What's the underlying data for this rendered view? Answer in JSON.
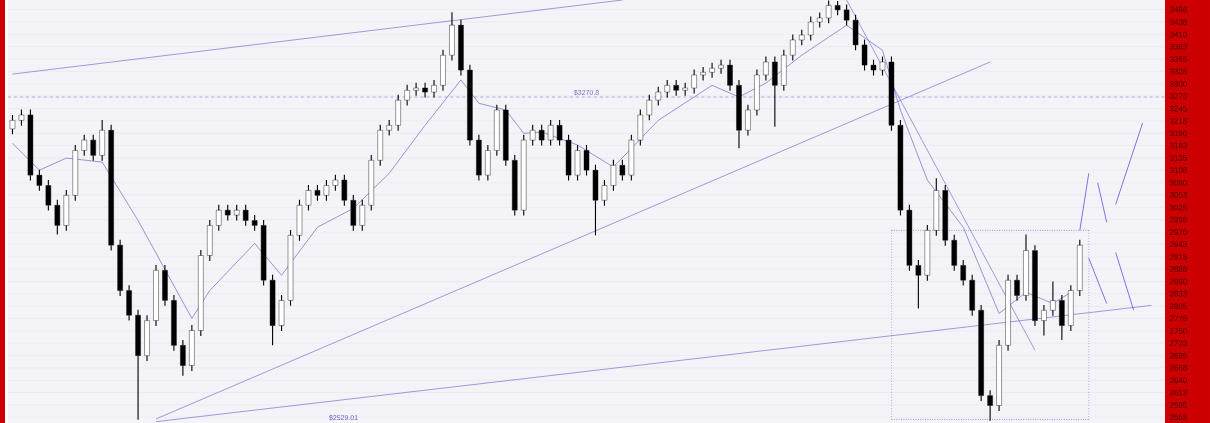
{
  "chart_data": {
    "type": "candlestick",
    "categories": [
      null,
      null,
      null,
      null,
      null,
      null,
      null,
      null,
      null,
      null,
      null,
      null,
      null,
      null,
      null,
      null,
      null,
      null,
      null,
      null,
      null,
      null,
      null,
      null,
      null,
      null,
      null,
      null,
      null,
      null,
      null,
      null,
      null,
      null,
      null,
      null,
      null,
      null,
      null,
      null,
      null,
      null,
      null,
      null,
      null,
      null,
      null,
      null,
      null,
      null,
      null,
      null,
      null,
      null,
      null,
      null,
      null,
      null,
      null,
      null,
      null,
      null,
      null,
      null,
      null,
      null,
      null,
      null,
      null,
      null,
      null,
      null,
      null,
      null,
      null,
      null,
      null,
      null,
      null,
      null,
      null,
      null,
      null,
      null,
      null,
      null,
      null,
      null,
      null,
      null,
      null,
      null,
      null,
      null,
      null,
      null,
      null,
      null,
      null,
      null,
      null,
      null,
      null,
      null,
      null,
      null,
      null,
      null,
      null,
      null,
      null,
      null,
      null,
      null,
      null,
      null,
      null,
      null,
      null,
      null,
      null,
      null,
      null,
      null,
      null,
      null,
      null,
      null,
      null
    ],
    "ohlc": [
      [
        3200,
        3231,
        3188,
        3219
      ],
      [
        3219,
        3243,
        3207,
        3231
      ],
      [
        3231,
        3243,
        3085,
        3097
      ],
      [
        3097,
        3109,
        3062,
        3074
      ],
      [
        3074,
        3086,
        3018,
        3030
      ],
      [
        3030,
        3042,
        2965,
        2985
      ],
      [
        2985,
        3064,
        2973,
        3052
      ],
      [
        3052,
        3164,
        3040,
        3152
      ],
      [
        3152,
        3187,
        3140,
        3175
      ],
      [
        3175,
        3187,
        3129,
        3141
      ],
      [
        3141,
        3220,
        3129,
        3197
      ],
      [
        3197,
        3209,
        2929,
        2941
      ],
      [
        2941,
        2953,
        2828,
        2840
      ],
      [
        2840,
        2852,
        2773,
        2785
      ],
      [
        2785,
        2797,
        2552,
        2695
      ],
      [
        2695,
        2785,
        2683,
        2773
      ],
      [
        2773,
        2897,
        2761,
        2885
      ],
      [
        2885,
        2897,
        2806,
        2818
      ],
      [
        2818,
        2830,
        2706,
        2718
      ],
      [
        2718,
        2730,
        2650,
        2673
      ],
      [
        2673,
        2763,
        2661,
        2751
      ],
      [
        2751,
        2930,
        2739,
        2918
      ],
      [
        2918,
        2997,
        2906,
        2985
      ],
      [
        2985,
        3031,
        2973,
        3019
      ],
      [
        3019,
        3031,
        2996,
        3008
      ],
      [
        3008,
        3031,
        2996,
        3019
      ],
      [
        3019,
        3031,
        2984,
        2996
      ],
      [
        2996,
        3008,
        2973,
        2985
      ],
      [
        2985,
        2997,
        2851,
        2863
      ],
      [
        2863,
        2875,
        2718,
        2762
      ],
      [
        2762,
        2830,
        2750,
        2818
      ],
      [
        2818,
        2975,
        2806,
        2963
      ],
      [
        2963,
        3042,
        2951,
        3030
      ],
      [
        3030,
        3075,
        3018,
        3063
      ],
      [
        3063,
        3075,
        3040,
        3052
      ],
      [
        3052,
        3086,
        3040,
        3074
      ],
      [
        3074,
        3098,
        3062,
        3086
      ],
      [
        3086,
        3098,
        3029,
        3041
      ],
      [
        3041,
        3053,
        2973,
        2985
      ],
      [
        2985,
        3042,
        2973,
        3030
      ],
      [
        3030,
        3142,
        3018,
        3130
      ],
      [
        3130,
        3209,
        3118,
        3197
      ],
      [
        3197,
        3220,
        3185,
        3208
      ],
      [
        3208,
        3276,
        3196,
        3264
      ],
      [
        3264,
        3298,
        3252,
        3286
      ],
      [
        3286,
        3303,
        3274,
        3291
      ],
      [
        3291,
        3303,
        3270,
        3282
      ],
      [
        3282,
        3309,
        3270,
        3297
      ],
      [
        3297,
        3376,
        3285,
        3364
      ],
      [
        3364,
        3460,
        3352,
        3431
      ],
      [
        3431,
        3443,
        3319,
        3331
      ],
      [
        3331,
        3343,
        3163,
        3175
      ],
      [
        3175,
        3187,
        3085,
        3097
      ],
      [
        3097,
        3164,
        3085,
        3152
      ],
      [
        3152,
        3254,
        3140,
        3242
      ],
      [
        3242,
        3254,
        3118,
        3130
      ],
      [
        3130,
        3142,
        3007,
        3019
      ],
      [
        3019,
        3187,
        3007,
        3175
      ],
      [
        3175,
        3209,
        3163,
        3197
      ],
      [
        3197,
        3209,
        3163,
        3175
      ],
      [
        3175,
        3220,
        3163,
        3208
      ],
      [
        3208,
        3220,
        3163,
        3175
      ],
      [
        3175,
        3187,
        3085,
        3097
      ],
      [
        3097,
        3164,
        3085,
        3152
      ],
      [
        3152,
        3164,
        3096,
        3108
      ],
      [
        3108,
        3120,
        2963,
        3041
      ],
      [
        3041,
        3086,
        3029,
        3074
      ],
      [
        3074,
        3131,
        3062,
        3119
      ],
      [
        3119,
        3131,
        3085,
        3097
      ],
      [
        3097,
        3187,
        3085,
        3175
      ],
      [
        3175,
        3243,
        3163,
        3231
      ],
      [
        3231,
        3276,
        3219,
        3264
      ],
      [
        3264,
        3294,
        3252,
        3282
      ],
      [
        3282,
        3309,
        3270,
        3297
      ],
      [
        3297,
        3309,
        3274,
        3286
      ],
      [
        3286,
        3303,
        3274,
        3291
      ],
      [
        3291,
        3332,
        3279,
        3320
      ],
      [
        3320,
        3338,
        3308,
        3326
      ],
      [
        3326,
        3347,
        3314,
        3335
      ],
      [
        3335,
        3354,
        3323,
        3342
      ],
      [
        3342,
        3354,
        3285,
        3297
      ],
      [
        3297,
        3309,
        3157,
        3197
      ],
      [
        3197,
        3254,
        3185,
        3242
      ],
      [
        3242,
        3332,
        3230,
        3320
      ],
      [
        3320,
        3361,
        3308,
        3349
      ],
      [
        3349,
        3361,
        3205,
        3297
      ],
      [
        3297,
        3376,
        3285,
        3364
      ],
      [
        3364,
        3410,
        3352,
        3398
      ],
      [
        3398,
        3421,
        3386,
        3409
      ],
      [
        3409,
        3450,
        3397,
        3438
      ],
      [
        3438,
        3459,
        3426,
        3447
      ],
      [
        3447,
        3486,
        3435,
        3475
      ],
      [
        3475,
        3485,
        3453,
        3465
      ],
      [
        3465,
        3477,
        3430,
        3442
      ],
      [
        3442,
        3454,
        3375,
        3387
      ],
      [
        3387,
        3399,
        3330,
        3342
      ],
      [
        3342,
        3354,
        3319,
        3331
      ],
      [
        3331,
        3361,
        3319,
        3349
      ],
      [
        3349,
        3361,
        3196,
        3208
      ],
      [
        3208,
        3220,
        3007,
        3019
      ],
      [
        3019,
        3031,
        2884,
        2896
      ],
      [
        2896,
        2908,
        2800,
        2874
      ],
      [
        2874,
        2986,
        2862,
        2974
      ],
      [
        2974,
        3090,
        2962,
        3063
      ],
      [
        3063,
        3075,
        2940,
        2952
      ],
      [
        2952,
        2964,
        2884,
        2896
      ],
      [
        2896,
        2908,
        2851,
        2863
      ],
      [
        2863,
        2875,
        2784,
        2796
      ],
      [
        2796,
        2808,
        2594,
        2606
      ],
      [
        2606,
        2618,
        2550,
        2584
      ],
      [
        2584,
        2730,
        2572,
        2718
      ],
      [
        2718,
        2875,
        2706,
        2863
      ],
      [
        2863,
        2875,
        2817,
        2829
      ],
      [
        2829,
        2965,
        2817,
        2929
      ],
      [
        2929,
        2941,
        2761,
        2773
      ],
      [
        2773,
        2808,
        2740,
        2796
      ],
      [
        2796,
        2860,
        2784,
        2818
      ],
      [
        2818,
        2830,
        2730,
        2762
      ],
      [
        2762,
        2852,
        2750,
        2840
      ],
      [
        2840,
        2953,
        2828,
        2941
      ],
      null,
      null,
      null,
      null,
      null,
      null,
      null,
      null,
      null
    ],
    "series": [
      {
        "type": "line",
        "color": "#6a6acc",
        "values": [
          3168,
          null,
          null,
          3108,
          null,
          null,
          3135,
          null,
          null,
          null,
          3126,
          null,
          null,
          null,
          2996,
          null,
          null,
          null,
          null,
          null,
          2778,
          null,
          2840,
          null,
          null,
          null,
          null,
          2945,
          null,
          null,
          2874,
          null,
          null,
          null,
          2981,
          null,
          null,
          null,
          3023,
          null,
          null,
          null,
          3101,
          null,
          null,
          null,
          3208,
          null,
          null,
          null,
          3309,
          null,
          3257,
          null,
          null,
          3242,
          null,
          3190,
          null,
          3193,
          null,
          null,
          null,
          3164,
          null,
          null,
          null,
          3115,
          null,
          null,
          null,
          null,
          3219,
          null,
          null,
          null,
          null,
          null,
          3297,
          null,
          null,
          3271,
          null,
          null,
          3302,
          null,
          null,
          null,
          3364,
          null,
          null,
          null,
          null,
          3431,
          null,
          null,
          null,
          3375,
          null,
          3242,
          null,
          null,
          3086,
          null,
          null,
          null,
          2981,
          null,
          null,
          null,
          2789,
          null,
          null,
          2836,
          null,
          null,
          2811,
          null,
          2836,
          null,
          null,
          null,
          null,
          null,
          null,
          null,
          null,
          null,
          null
        ]
      },
      {
        "type": "line",
        "color": "#7474d4",
        "values": [
          3322,
          null,
          null,
          null,
          null,
          null,
          null,
          null,
          null,
          null,
          null,
          null,
          null,
          null,
          null,
          null,
          null,
          null,
          null,
          null,
          null,
          null,
          null,
          null,
          null,
          null,
          null,
          null,
          null,
          null,
          null,
          null,
          null,
          null,
          null,
          null,
          null,
          null,
          null,
          null,
          null,
          null,
          null,
          null,
          null,
          null,
          null,
          null,
          null,
          null,
          null,
          null,
          null,
          null,
          null,
          null,
          null,
          null,
          null,
          null,
          null,
          null,
          null,
          null,
          null,
          null,
          null,
          null,
          3487,
          null,
          null,
          null,
          null,
          null,
          null,
          null,
          null,
          null,
          null,
          null,
          null,
          null,
          null,
          null,
          null,
          null,
          null,
          null,
          null,
          null,
          null,
          null,
          null,
          null,
          null,
          null,
          null,
          null,
          null,
          null,
          null,
          null,
          null,
          null,
          null,
          null,
          null,
          null,
          null,
          null,
          null,
          null,
          null,
          null,
          null,
          null,
          null,
          null,
          null,
          null,
          null,
          null,
          null,
          null,
          null,
          null,
          null,
          null,
          null
        ]
      },
      {
        "type": "line",
        "color": "#7474d4",
        "values": [
          null,
          null,
          null,
          null,
          null,
          null,
          null,
          null,
          null,
          null,
          null,
          null,
          null,
          null,
          null,
          null,
          2554,
          null,
          null,
          null,
          null,
          null,
          null,
          null,
          null,
          null,
          null,
          null,
          null,
          null,
          null,
          null,
          null,
          null,
          null,
          null,
          null,
          null,
          null,
          null,
          null,
          null,
          null,
          null,
          null,
          null,
          null,
          null,
          null,
          null,
          null,
          null,
          null,
          null,
          null,
          null,
          null,
          null,
          null,
          null,
          null,
          null,
          null,
          null,
          null,
          null,
          null,
          null,
          null,
          null,
          null,
          null,
          null,
          null,
          null,
          null,
          null,
          null,
          null,
          null,
          null,
          null,
          null,
          null,
          null,
          null,
          null,
          null,
          null,
          null,
          null,
          null,
          null,
          null,
          null,
          null,
          null,
          null,
          null,
          null,
          null,
          null,
          null,
          null,
          null,
          null,
          null,
          null,
          null,
          3349,
          null,
          null,
          null,
          null,
          null,
          null,
          null,
          null,
          null,
          null,
          null,
          null,
          null,
          null,
          null,
          null,
          null,
          null,
          null
        ]
      },
      {
        "type": "line",
        "color": "#7474d4",
        "values": [
          null,
          null,
          null,
          null,
          null,
          null,
          null,
          null,
          null,
          null,
          null,
          null,
          null,
          null,
          null,
          null,
          2548,
          null,
          null,
          null,
          null,
          null,
          null,
          null,
          null,
          null,
          null,
          null,
          null,
          null,
          null,
          null,
          null,
          null,
          null,
          null,
          null,
          null,
          null,
          null,
          null,
          null,
          null,
          null,
          null,
          null,
          null,
          null,
          null,
          null,
          null,
          null,
          null,
          null,
          null,
          null,
          null,
          null,
          null,
          null,
          null,
          null,
          null,
          null,
          null,
          null,
          null,
          null,
          null,
          null,
          null,
          null,
          null,
          null,
          null,
          null,
          null,
          null,
          null,
          null,
          null,
          null,
          null,
          null,
          null,
          null,
          null,
          null,
          null,
          null,
          null,
          null,
          null,
          null,
          null,
          null,
          null,
          null,
          null,
          null,
          null,
          null,
          null,
          null,
          null,
          null,
          null,
          null,
          null,
          null,
          null,
          null,
          null,
          null,
          null,
          null,
          null,
          null,
          null,
          null,
          null,
          null,
          null,
          null,
          null,
          null,
          null,
          2807,
          null
        ]
      },
      {
        "type": "line",
        "color": "#7474d4",
        "values": [
          null,
          null,
          null,
          null,
          null,
          null,
          null,
          null,
          null,
          null,
          null,
          null,
          null,
          null,
          null,
          null,
          null,
          null,
          null,
          null,
          null,
          null,
          null,
          null,
          null,
          null,
          null,
          null,
          null,
          null,
          null,
          null,
          null,
          null,
          null,
          null,
          null,
          null,
          null,
          null,
          null,
          null,
          null,
          null,
          null,
          null,
          null,
          null,
          null,
          null,
          null,
          null,
          null,
          null,
          null,
          null,
          null,
          null,
          null,
          null,
          null,
          null,
          null,
          null,
          null,
          null,
          null,
          null,
          null,
          null,
          null,
          null,
          null,
          null,
          null,
          null,
          null,
          null,
          null,
          null,
          null,
          null,
          null,
          null,
          null,
          null,
          null,
          null,
          null,
          null,
          null,
          null,
          null,
          3487,
          null,
          null,
          null,
          null,
          null,
          null,
          null,
          null,
          null,
          null,
          null,
          null,
          null,
          null,
          null,
          null,
          null,
          null,
          null,
          null,
          2707,
          null,
          null,
          null,
          null,
          null,
          null,
          null,
          null,
          null,
          null,
          null,
          null,
          null,
          null
        ]
      },
      {
        "type": "line",
        "color": "#4040dd",
        "values": [
          null,
          null,
          null,
          null,
          null,
          null,
          null,
          null,
          null,
          null,
          null,
          null,
          null,
          null,
          null,
          null,
          null,
          null,
          null,
          null,
          null,
          null,
          null,
          null,
          null,
          null,
          null,
          null,
          null,
          null,
          null,
          null,
          null,
          null,
          null,
          null,
          null,
          null,
          null,
          null,
          null,
          null,
          null,
          null,
          null,
          null,
          null,
          null,
          null,
          null,
          null,
          null,
          null,
          null,
          null,
          null,
          null,
          null,
          null,
          null,
          null,
          null,
          null,
          null,
          null,
          null,
          null,
          null,
          null,
          null,
          null,
          null,
          null,
          null,
          null,
          null,
          null,
          null,
          null,
          null,
          null,
          null,
          null,
          null,
          null,
          null,
          null,
          null,
          null,
          null,
          null,
          null,
          null,
          null,
          null,
          null,
          null,
          null,
          null,
          null,
          null,
          null,
          null,
          null,
          null,
          null,
          null,
          null,
          null,
          null,
          null,
          null,
          null,
          null,
          null,
          null,
          null,
          null,
          null,
          2974,
          3101,
          null,
          null,
          null,
          null,
          null,
          null,
          null,
          null
        ]
      },
      {
        "type": "line",
        "color": "#4040dd",
        "values": [
          null,
          null,
          null,
          null,
          null,
          null,
          null,
          null,
          null,
          null,
          null,
          null,
          null,
          null,
          null,
          null,
          null,
          null,
          null,
          null,
          null,
          null,
          null,
          null,
          null,
          null,
          null,
          null,
          null,
          null,
          null,
          null,
          null,
          null,
          null,
          null,
          null,
          null,
          null,
          null,
          null,
          null,
          null,
          null,
          null,
          null,
          null,
          null,
          null,
          null,
          null,
          null,
          null,
          null,
          null,
          null,
          null,
          null,
          null,
          null,
          null,
          null,
          null,
          null,
          null,
          null,
          null,
          null,
          null,
          null,
          null,
          null,
          null,
          null,
          null,
          null,
          null,
          null,
          null,
          null,
          null,
          null,
          null,
          null,
          null,
          null,
          null,
          null,
          null,
          null,
          null,
          null,
          null,
          null,
          null,
          null,
          null,
          null,
          null,
          null,
          null,
          null,
          null,
          null,
          null,
          null,
          null,
          null,
          null,
          null,
          null,
          null,
          null,
          null,
          null,
          null,
          null,
          null,
          null,
          null,
          2912,
          null,
          2811,
          null,
          null,
          null,
          null,
          null,
          null
        ]
      },
      {
        "type": "line",
        "color": "#4040dd",
        "values": [
          null,
          null,
          null,
          null,
          null,
          null,
          null,
          null,
          null,
          null,
          null,
          null,
          null,
          null,
          null,
          null,
          null,
          null,
          null,
          null,
          null,
          null,
          null,
          null,
          null,
          null,
          null,
          null,
          null,
          null,
          null,
          null,
          null,
          null,
          null,
          null,
          null,
          null,
          null,
          null,
          null,
          null,
          null,
          null,
          null,
          null,
          null,
          null,
          null,
          null,
          null,
          null,
          null,
          null,
          null,
          null,
          null,
          null,
          null,
          null,
          null,
          null,
          null,
          null,
          null,
          null,
          null,
          null,
          null,
          null,
          null,
          null,
          null,
          null,
          null,
          null,
          null,
          null,
          null,
          null,
          null,
          null,
          null,
          null,
          null,
          null,
          null,
          null,
          null,
          null,
          null,
          null,
          null,
          null,
          null,
          null,
          null,
          null,
          null,
          null,
          null,
          null,
          null,
          null,
          null,
          null,
          null,
          null,
          null,
          null,
          null,
          null,
          null,
          null,
          null,
          null,
          null,
          null,
          null,
          null,
          null,
          3080,
          2992,
          null,
          null,
          null,
          null,
          null,
          null
        ]
      },
      {
        "type": "line",
        "color": "#4040dd",
        "values": [
          null,
          null,
          null,
          null,
          null,
          null,
          null,
          null,
          null,
          null,
          null,
          null,
          null,
          null,
          null,
          null,
          null,
          null,
          null,
          null,
          null,
          null,
          null,
          null,
          null,
          null,
          null,
          null,
          null,
          null,
          null,
          null,
          null,
          null,
          null,
          null,
          null,
          null,
          null,
          null,
          null,
          null,
          null,
          null,
          null,
          null,
          null,
          null,
          null,
          null,
          null,
          null,
          null,
          null,
          null,
          null,
          null,
          null,
          null,
          null,
          null,
          null,
          null,
          null,
          null,
          null,
          null,
          null,
          null,
          null,
          null,
          null,
          null,
          null,
          null,
          null,
          null,
          null,
          null,
          null,
          null,
          null,
          null,
          null,
          null,
          null,
          null,
          null,
          null,
          null,
          null,
          null,
          null,
          null,
          null,
          null,
          null,
          null,
          null,
          null,
          null,
          null,
          null,
          null,
          null,
          null,
          null,
          null,
          null,
          null,
          null,
          null,
          null,
          null,
          null,
          null,
          null,
          null,
          null,
          null,
          null,
          null,
          null,
          3032,
          null,
          null,
          3213,
          null,
          null
        ]
      },
      {
        "type": "line",
        "color": "#4040dd",
        "values": [
          null,
          null,
          null,
          null,
          null,
          null,
          null,
          null,
          null,
          null,
          null,
          null,
          null,
          null,
          null,
          null,
          null,
          null,
          null,
          null,
          null,
          null,
          null,
          null,
          null,
          null,
          null,
          null,
          null,
          null,
          null,
          null,
          null,
          null,
          null,
          null,
          null,
          null,
          null,
          null,
          null,
          null,
          null,
          null,
          null,
          null,
          null,
          null,
          null,
          null,
          null,
          null,
          null,
          null,
          null,
          null,
          null,
          null,
          null,
          null,
          null,
          null,
          null,
          null,
          null,
          null,
          null,
          null,
          null,
          null,
          null,
          null,
          null,
          null,
          null,
          null,
          null,
          null,
          null,
          null,
          null,
          null,
          null,
          null,
          null,
          null,
          null,
          null,
          null,
          null,
          null,
          null,
          null,
          null,
          null,
          null,
          null,
          null,
          null,
          null,
          null,
          null,
          null,
          null,
          null,
          null,
          null,
          null,
          null,
          null,
          null,
          null,
          null,
          null,
          null,
          null,
          null,
          null,
          null,
          null,
          null,
          null,
          null,
          2925,
          null,
          2796,
          null,
          null,
          null
        ]
      },
      {
        "type": "line",
        "color": "#6a6acc",
        "line_style": "dotted",
        "values": [
          null,
          null,
          null,
          null,
          null,
          null,
          null,
          null,
          null,
          null,
          null,
          null,
          null,
          null,
          null,
          null,
          null,
          null,
          null,
          null,
          null,
          null,
          null,
          null,
          null,
          null,
          null,
          null,
          null,
          null,
          null,
          null,
          null,
          null,
          null,
          null,
          null,
          null,
          null,
          null,
          null,
          null,
          null,
          null,
          null,
          null,
          null,
          null,
          null,
          null,
          null,
          null,
          null,
          null,
          null,
          null,
          null,
          null,
          null,
          null,
          null,
          null,
          null,
          null,
          null,
          null,
          null,
          null,
          null,
          null,
          null,
          null,
          null,
          null,
          null,
          null,
          null,
          null,
          null,
          null,
          null,
          null,
          null,
          null,
          null,
          null,
          null,
          null,
          null,
          null,
          null,
          null,
          null,
          null,
          null,
          null,
          null,
          null,
          2974,
          null,
          null,
          null,
          null,
          null,
          null,
          null,
          null,
          null,
          null,
          null,
          null,
          null,
          null,
          null,
          null,
          null,
          null,
          null,
          null,
          null,
          2974,
          null,
          null,
          null,
          null,
          null,
          null,
          null,
          null
        ]
      },
      {
        "type": "line",
        "color": "#6a6acc",
        "line_style": "dotted",
        "values": [
          null,
          null,
          null,
          null,
          null,
          null,
          null,
          null,
          null,
          null,
          null,
          null,
          null,
          null,
          null,
          null,
          null,
          null,
          null,
          null,
          null,
          null,
          null,
          null,
          null,
          null,
          null,
          null,
          null,
          null,
          null,
          null,
          null,
          null,
          null,
          null,
          null,
          null,
          null,
          null,
          null,
          null,
          null,
          null,
          null,
          null,
          null,
          null,
          null,
          null,
          null,
          null,
          null,
          null,
          null,
          null,
          null,
          null,
          null,
          null,
          null,
          null,
          null,
          null,
          null,
          null,
          null,
          null,
          null,
          null,
          null,
          null,
          null,
          null,
          null,
          null,
          null,
          null,
          null,
          null,
          null,
          null,
          null,
          null,
          null,
          null,
          null,
          null,
          null,
          null,
          null,
          null,
          null,
          null,
          null,
          null,
          null,
          null,
          2553,
          null,
          null,
          null,
          null,
          null,
          null,
          null,
          null,
          null,
          null,
          null,
          null,
          null,
          null,
          null,
          null,
          null,
          null,
          null,
          null,
          null,
          2553,
          null,
          null,
          null,
          null,
          null,
          null,
          null,
          null
        ]
      }
    ],
    "ref_lines": [
      {
        "axis": "y",
        "value": 3270.8,
        "label": "$3270.8",
        "color": "#6a6acc",
        "line_style": "dashed"
      }
    ],
    "annotations": [
      "$2529.01"
    ],
    "ylim": [
      2545,
      3487
    ],
    "yticks": [
      3466,
      3438,
      3410,
      3383,
      3355,
      3328,
      3300,
      3273,
      3245,
      3218,
      3190,
      3163,
      3135,
      3108,
      3080,
      3053,
      3025,
      2998,
      2970,
      2943,
      2915,
      2888,
      2860,
      2833,
      2805,
      2778,
      2750,
      2723,
      2695,
      2668,
      2640,
      2613,
      2585,
      2558
    ],
    "grid": "y",
    "tick_labels": "y"
  }
}
